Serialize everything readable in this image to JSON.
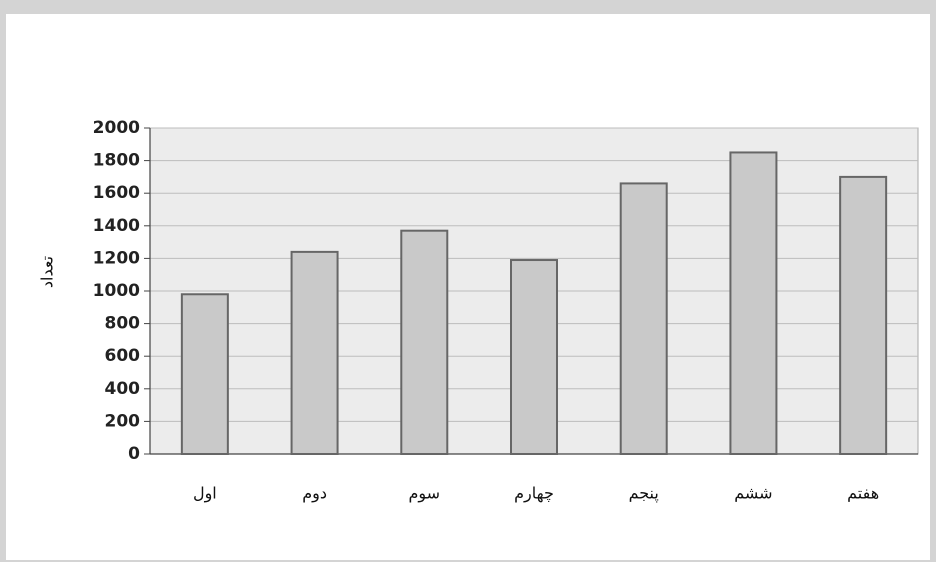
{
  "chart_data": {
    "type": "bar",
    "title": "",
    "xlabel": "",
    "ylabel": "تعداد",
    "categories": [
      "اول",
      "دوم",
      "سوم",
      "چهارم",
      "پنجم",
      "ششم",
      "هفتم"
    ],
    "values": [
      980,
      1240,
      1370,
      1190,
      1660,
      1850,
      1700
    ],
    "ylim": [
      0,
      2000
    ],
    "yticks": [
      0,
      200,
      400,
      600,
      800,
      1000,
      1200,
      1400,
      1600,
      1800,
      2000
    ],
    "grid": true,
    "legend": "none",
    "colors": {
      "plot_background": "#ececec",
      "bar_fill": "#c9c9c9",
      "bar_stroke": "#666666",
      "gridline": "#bdbdbd"
    }
  }
}
